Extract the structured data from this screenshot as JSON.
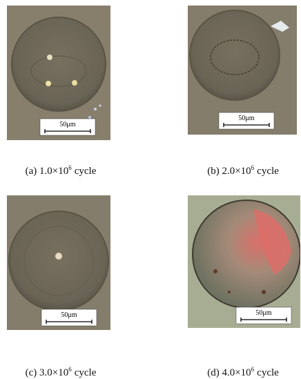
{
  "panels": [
    {
      "caption": {
        "label": "(a) 1.0×10",
        "exponent": "6",
        "unit": "cycle"
      },
      "scale_bar": "50μm"
    },
    {
      "caption": {
        "label": "(b) 2.0×10",
        "exponent": "6",
        "unit": "cycle"
      },
      "scale_bar": "50μm"
    },
    {
      "caption": {
        "label": "(c) 3.0×10",
        "exponent": "6",
        "unit": "cycle"
      },
      "scale_bar": "50μm"
    },
    {
      "caption": {
        "label": "(d) 4.0×10",
        "exponent": "6",
        "unit": "cycle"
      },
      "scale_bar": "50μm"
    }
  ]
}
